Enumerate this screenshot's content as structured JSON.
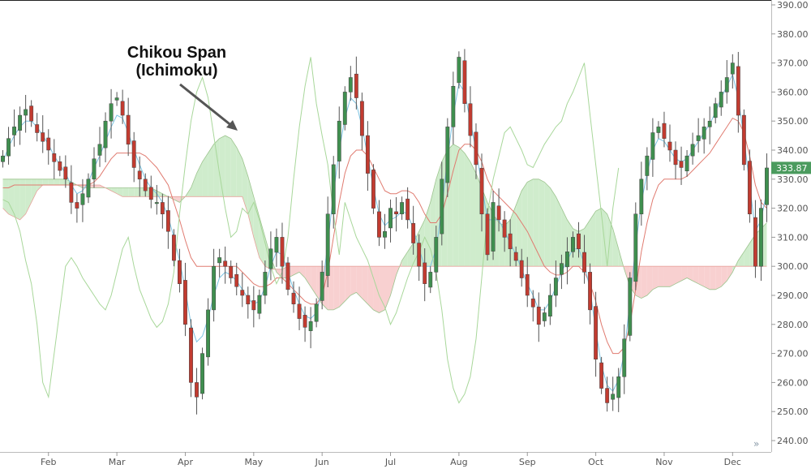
{
  "chart_data": {
    "type": "candlestick",
    "indicator": "Ichimoku",
    "colors": {
      "up": "#3f8f4f",
      "down": "#c23b30",
      "tenkan": "#7cc4e3",
      "kijun": "#e07b70",
      "chikou": "#a8d79a",
      "cloud_bull": "#cfeccc",
      "cloud_bear": "#f8d0d0",
      "last_price_tag": "#4b9b5e"
    },
    "x_labels": [
      "Feb",
      "Mar",
      "Apr",
      "May",
      "Jun",
      "Jul",
      "Aug",
      "Sep",
      "Oct",
      "Nov",
      "Dec"
    ],
    "y_ticks": [
      "390.00",
      "380.00",
      "370.00",
      "360.00",
      "350.00",
      "340.00",
      "330.00",
      "320.00",
      "310.00",
      "300.00",
      "290.00",
      "280.00",
      "270.00",
      "260.00",
      "250.00",
      "240.00"
    ],
    "ylim": [
      238,
      391
    ],
    "last_price": "333.87",
    "annotation": {
      "line1": "Chikou Span",
      "line2": "(Ichimoku)"
    },
    "month_start_index": [
      8,
      20,
      32,
      44,
      56,
      68,
      80,
      92,
      104,
      116,
      128
    ],
    "closes": [
      338,
      344,
      348,
      352,
      354,
      350,
      346,
      343,
      340,
      336,
      333,
      330,
      322,
      320,
      325,
      330,
      337,
      342,
      350,
      356,
      358,
      352,
      342,
      334,
      330,
      326,
      323,
      322,
      318,
      312,
      302,
      294,
      280,
      260,
      255,
      270,
      285,
      300,
      303,
      300,
      296,
      293,
      290,
      287,
      285,
      290,
      298,
      306,
      310,
      300,
      292,
      287,
      282,
      279,
      281,
      287,
      298,
      318,
      335,
      350,
      360,
      365,
      358,
      345,
      332,
      320,
      310,
      312,
      320,
      318,
      322,
      316,
      308,
      300,
      294,
      298,
      310,
      330,
      348,
      362,
      372,
      356,
      345,
      335,
      318,
      304,
      322,
      316,
      310,
      306,
      302,
      296,
      290,
      286,
      280,
      284,
      290,
      296,
      301,
      305,
      310,
      306,
      298,
      285,
      268,
      258,
      253,
      256,
      262,
      275,
      296,
      318,
      330,
      338,
      346,
      348,
      344,
      340,
      335,
      334,
      338,
      342,
      345,
      348,
      350,
      356,
      360,
      365,
      370,
      352,
      335,
      318,
      300,
      320,
      333.87
    ],
    "tenkan": [
      336,
      341,
      345,
      348,
      350,
      350,
      348,
      345,
      342,
      338,
      335,
      332,
      328,
      325,
      326,
      329,
      334,
      338,
      343,
      348,
      352,
      351,
      346,
      340,
      335,
      330,
      327,
      325,
      322,
      317,
      310,
      302,
      292,
      280,
      274,
      276,
      282,
      290,
      296,
      298,
      297,
      295,
      292,
      289,
      287,
      288,
      293,
      300,
      305,
      304,
      298,
      292,
      287,
      283,
      282,
      284,
      292,
      308,
      325,
      340,
      351,
      358,
      356,
      348,
      338,
      327,
      318,
      314,
      316,
      317,
      319,
      318,
      313,
      306,
      300,
      300,
      306,
      320,
      337,
      352,
      363,
      360,
      350,
      340,
      328,
      316,
      316,
      316,
      312,
      308,
      304,
      299,
      294,
      290,
      285,
      285,
      288,
      293,
      298,
      302,
      306,
      306,
      301,
      292,
      278,
      266,
      259,
      257,
      261,
      270,
      288,
      307,
      322,
      332,
      340,
      344,
      343,
      340,
      337,
      336,
      337,
      340,
      343,
      346,
      349,
      353,
      358,
      362,
      366,
      358,
      344,
      328,
      312,
      316,
      326
    ],
    "kijun": [
      327,
      327,
      328,
      328,
      328,
      328,
      328,
      328,
      328,
      328,
      328,
      328,
      328,
      328,
      328,
      328,
      329,
      331,
      334,
      337,
      339,
      339,
      339,
      339,
      339,
      338,
      336,
      334,
      331,
      328,
      322,
      316,
      309,
      303,
      300,
      300,
      300,
      300,
      300,
      300,
      300,
      300,
      298,
      296,
      294,
      293,
      293,
      294,
      296,
      296,
      294,
      292,
      290,
      288,
      287,
      287,
      290,
      298,
      310,
      322,
      332,
      338,
      340,
      340,
      338,
      334,
      330,
      326,
      325,
      325,
      326,
      326,
      325,
      322,
      318,
      315,
      315,
      318,
      325,
      333,
      340,
      342,
      342,
      340,
      336,
      330,
      326,
      324,
      322,
      320,
      318,
      315,
      312,
      308,
      304,
      300,
      298,
      297,
      297,
      298,
      300,
      300,
      298,
      294,
      288,
      280,
      274,
      270,
      270,
      272,
      280,
      292,
      305,
      315,
      323,
      328,
      330,
      330,
      330,
      330,
      331,
      333,
      335,
      337,
      339,
      342,
      345,
      348,
      351,
      350,
      346,
      338,
      328,
      322,
      320
    ],
    "senkou_a": [
      330,
      330,
      330,
      330,
      330,
      330,
      330,
      330,
      330,
      330,
      330,
      330,
      329,
      328,
      327,
      327,
      327,
      327,
      327,
      327,
      327,
      327,
      327,
      327,
      327,
      327,
      327,
      326,
      325,
      324,
      323,
      322,
      324,
      327,
      332,
      336,
      339,
      342,
      344,
      345,
      344,
      341,
      337,
      331,
      324,
      317,
      310,
      303,
      298,
      296,
      296,
      297,
      298,
      296,
      293,
      290,
      287,
      285,
      285,
      286,
      288,
      290,
      291,
      289,
      287,
      285,
      284,
      285,
      290,
      297,
      302,
      305,
      308,
      312,
      316,
      322,
      330,
      336,
      340,
      342,
      341,
      339,
      336,
      332,
      327,
      322,
      318,
      315,
      314,
      316,
      321,
      326,
      329,
      330,
      330,
      329,
      327,
      324,
      320,
      316,
      313,
      312,
      313,
      316,
      319,
      320,
      318,
      313,
      306,
      299,
      293,
      290,
      289,
      290,
      292,
      293,
      293,
      293,
      294,
      295,
      296,
      295,
      294,
      293,
      292,
      292,
      293,
      295,
      298,
      302,
      305,
      308,
      311,
      313,
      315
    ],
    "senkou_b": [
      320,
      318,
      317,
      316,
      318,
      322,
      326,
      328,
      328,
      328,
      328,
      328,
      328,
      328,
      328,
      328,
      328,
      328,
      327,
      326,
      325,
      324,
      324,
      324,
      324,
      324,
      324,
      324,
      324,
      324,
      324,
      324,
      324,
      324,
      324,
      324,
      324,
      324,
      324,
      324,
      324,
      324,
      324,
      318,
      310,
      303,
      300,
      299,
      299,
      299,
      300,
      300,
      300,
      300,
      300,
      300,
      300,
      300,
      300,
      300,
      300,
      300,
      300,
      300,
      300,
      300,
      300,
      300,
      300,
      300,
      300,
      300,
      300,
      300,
      300,
      300,
      300,
      300,
      300,
      300,
      300,
      300,
      300,
      300,
      300,
      300,
      300,
      300,
      300,
      300,
      300,
      300,
      300,
      300,
      300,
      300,
      300,
      300,
      300,
      300,
      300,
      300,
      300,
      300,
      300,
      300,
      300,
      300,
      300,
      300,
      300,
      300,
      300,
      300,
      300,
      300,
      300,
      300,
      300,
      300,
      300,
      300,
      300,
      300,
      300,
      300,
      300,
      300,
      300,
      300,
      300,
      300,
      300,
      300,
      300
    ]
  }
}
